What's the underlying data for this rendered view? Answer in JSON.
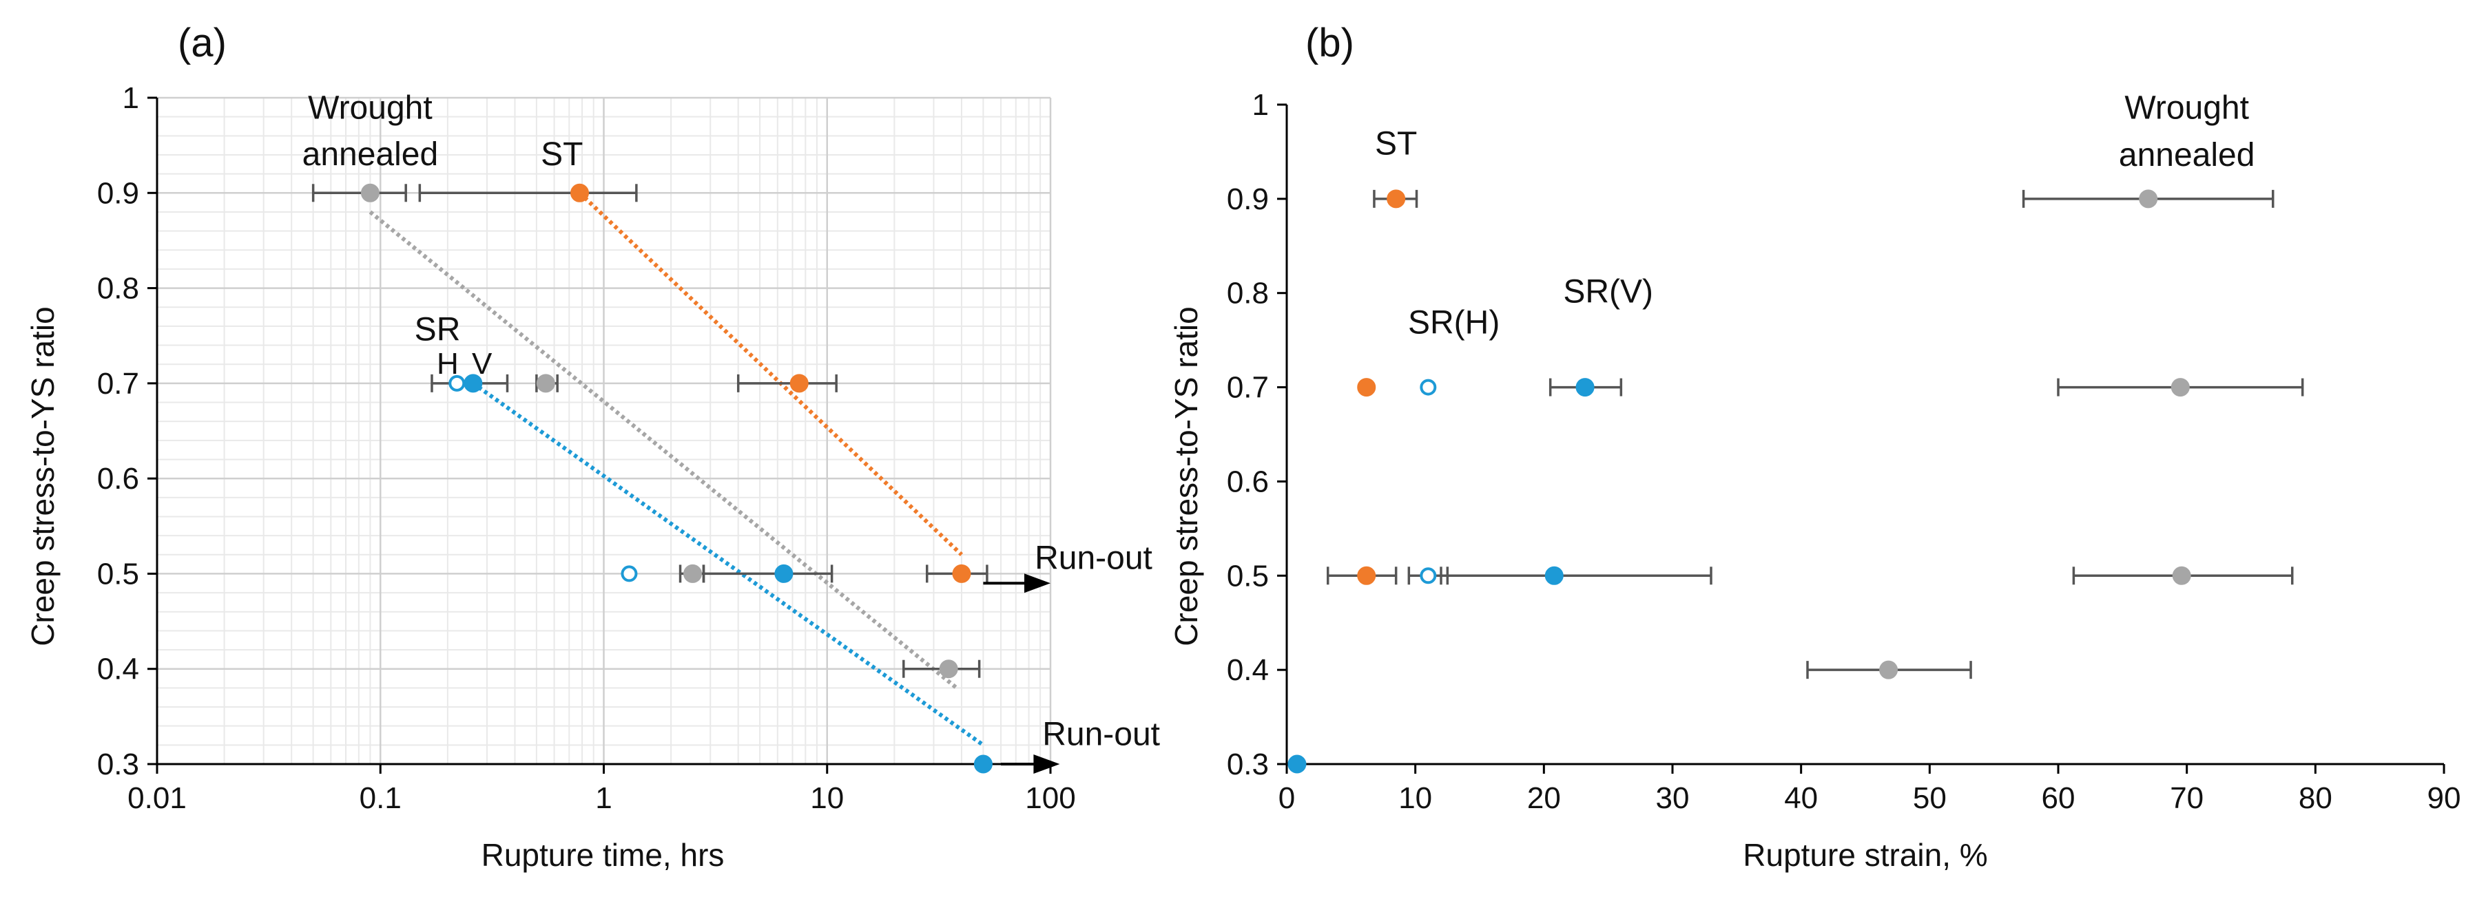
{
  "colors": {
    "ST": "#F07B2A",
    "SR": "#1D9AD6",
    "Wrought": "#A6A6A6",
    "err": "#555555"
  },
  "chart_data": [
    {
      "type": "scatter",
      "panel_label": "(a)",
      "xlabel": "Rupture time, hrs",
      "ylabel": "Creep stress-to-YS ratio",
      "xscale": "log",
      "xlim": [
        0.01,
        100
      ],
      "ylim": [
        0.3,
        1.0
      ],
      "x_ticks": [
        "0.01",
        "0.1",
        "1",
        "10",
        "100"
      ],
      "y_ticks": [
        "0.3",
        "0.4",
        "0.5",
        "0.6",
        "0.7",
        "0.8",
        "0.9",
        "1"
      ],
      "grid": true,
      "series": [
        {
          "name": "Wrought annealed",
          "color": "Wrought",
          "marker": "filled",
          "points": [
            {
              "x": 0.09,
              "y": 0.9,
              "xerr": [
                0.05,
                0.13
              ]
            },
            {
              "x": 0.55,
              "y": 0.7,
              "xerr": [
                0.5,
                0.62
              ]
            },
            {
              "x": 2.5,
              "y": 0.5,
              "xerr": [
                2.2,
                2.8
              ]
            },
            {
              "x": 35,
              "y": 0.4,
              "xerr": [
                22,
                48
              ]
            }
          ],
          "trend": [
            [
              0.09,
              0.88
            ],
            [
              38,
              0.38
            ]
          ]
        },
        {
          "name": "ST",
          "color": "ST",
          "marker": "filled",
          "points": [
            {
              "x": 0.78,
              "y": 0.9,
              "xerr": [
                0.15,
                1.4
              ]
            },
            {
              "x": 7.5,
              "y": 0.7,
              "xerr": [
                4,
                11
              ]
            },
            {
              "x": 40,
              "y": 0.5,
              "xerr": [
                28,
                52
              ]
            }
          ],
          "trend": [
            [
              0.78,
              0.9
            ],
            [
              40,
              0.52
            ]
          ]
        },
        {
          "name": "SR V",
          "color": "SR",
          "marker": "filled",
          "points": [
            {
              "x": 0.26,
              "y": 0.7,
              "xerr": [
                0.17,
                0.37
              ]
            },
            {
              "x": 6.4,
              "y": 0.5,
              "xerr": [
                2.8,
                10.5
              ]
            },
            {
              "x": 50,
              "y": 0.3
            }
          ],
          "trend": [
            [
              0.26,
              0.7
            ],
            [
              50,
              0.32
            ]
          ]
        },
        {
          "name": "SR H",
          "color": "SR",
          "marker": "open",
          "points": [
            {
              "x": 0.22,
              "y": 0.7
            },
            {
              "x": 1.3,
              "y": 0.5
            }
          ]
        }
      ],
      "annotations": [
        {
          "text": "Wrought",
          "x": 0.09,
          "y": 0.978
        },
        {
          "text": "annealed",
          "x": 0.09,
          "y": 0.929
        },
        {
          "text": "ST",
          "x": 0.65,
          "y": 0.929
        },
        {
          "text": "SR",
          "x": 0.18,
          "y": 0.745
        },
        {
          "text": "H",
          "x": 0.2,
          "y": 0.71
        },
        {
          "text": "V",
          "x": 0.285,
          "y": 0.71
        },
        {
          "text": "Run-out",
          "x": 85,
          "y": 0.505
        },
        {
          "text": "Run-out",
          "x": 92,
          "y": 0.32
        }
      ],
      "arrows": [
        {
          "from": [
            50,
            0.49
          ],
          "to": [
            100,
            0.49
          ]
        },
        {
          "from": [
            60,
            0.3
          ],
          "to": [
            110,
            0.3
          ]
        }
      ]
    },
    {
      "type": "scatter",
      "panel_label": "(b)",
      "xlabel": "Rupture strain, %",
      "ylabel": "Creep stress-to-YS ratio",
      "xlim": [
        0,
        90
      ],
      "ylim": [
        0.3,
        1.0
      ],
      "x_ticks": [
        "0",
        "10",
        "20",
        "30",
        "40",
        "50",
        "60",
        "70",
        "80",
        "90"
      ],
      "y_ticks": [
        "0.3",
        "0.4",
        "0.5",
        "0.6",
        "0.7",
        "0.8",
        "0.9",
        "1"
      ],
      "grid": false,
      "series": [
        {
          "name": "ST",
          "color": "ST",
          "marker": "filled",
          "points": [
            {
              "x": 8.5,
              "y": 0.9,
              "xerr": [
                6.8,
                10.1
              ]
            },
            {
              "x": 6.2,
              "y": 0.7
            },
            {
              "x": 6.2,
              "y": 0.5,
              "xerr": [
                3.2,
                8.5
              ]
            }
          ]
        },
        {
          "name": "SR(H)",
          "color": "SR",
          "marker": "open",
          "points": [
            {
              "x": 11,
              "y": 0.7
            },
            {
              "x": 11,
              "y": 0.5,
              "xerr": [
                9.5,
                12.5
              ]
            }
          ]
        },
        {
          "name": "SR(V)",
          "color": "SR",
          "marker": "filled",
          "points": [
            {
              "x": 23.2,
              "y": 0.7,
              "xerr": [
                20.5,
                26
              ]
            },
            {
              "x": 20.8,
              "y": 0.5,
              "xerr": [
                12,
                33
              ]
            },
            {
              "x": 0.8,
              "y": 0.3
            }
          ]
        },
        {
          "name": "Wrought annealed",
          "color": "Wrought",
          "marker": "filled",
          "points": [
            {
              "x": 67,
              "y": 0.9,
              "xerr": [
                57.3,
                76.7
              ]
            },
            {
              "x": 69.5,
              "y": 0.7,
              "xerr": [
                60,
                79
              ]
            },
            {
              "x": 69.6,
              "y": 0.5,
              "xerr": [
                61.2,
                78.2
              ]
            },
            {
              "x": 46.8,
              "y": 0.4,
              "xerr": [
                40.5,
                53.2
              ]
            }
          ]
        }
      ],
      "annotations": [
        {
          "text": "ST",
          "x": 8.5,
          "y": 0.947
        },
        {
          "text": "SR(H)",
          "x": 13,
          "y": 0.757
        },
        {
          "text": "SR(V)",
          "x": 25,
          "y": 0.79
        },
        {
          "text": "Wrought",
          "x": 70,
          "y": 0.985
        },
        {
          "text": "annealed",
          "x": 70,
          "y": 0.935
        }
      ]
    }
  ]
}
